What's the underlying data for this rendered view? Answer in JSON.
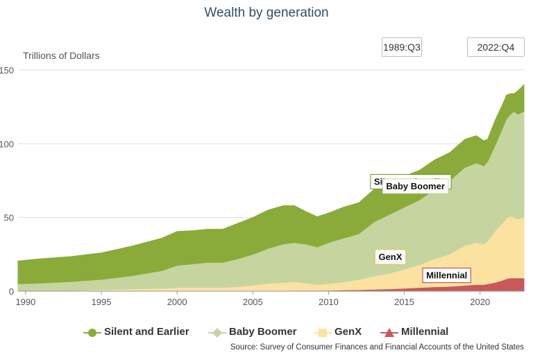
{
  "title": "Wealth by generation",
  "range": {
    "start": "1989:Q3",
    "end": "2022:Q4"
  },
  "source": "Source: Survey of Consumer Finances and Financial Accounts of the United States",
  "colors": {
    "silent": "#8aab3a",
    "boomer": "#c6d4a0",
    "genx": "#fbe2a0",
    "millennial": "#c9585a"
  },
  "legend": [
    {
      "key": "silent",
      "label": "Silent and Earlier",
      "marker": "circle"
    },
    {
      "key": "boomer",
      "label": "Baby Boomer",
      "marker": "diamond"
    },
    {
      "key": "genx",
      "label": "GenX",
      "marker": "square"
    },
    {
      "key": "millennial",
      "label": "Millennial",
      "marker": "triangle"
    }
  ],
  "chart_data": {
    "type": "area",
    "stacked": true,
    "ylabel": "Trillions of Dollars",
    "ylim": [
      0,
      150
    ],
    "yticks": [
      0,
      50,
      100,
      150
    ],
    "xlim": [
      1989.5,
      2022.9
    ],
    "xticks": [
      1990,
      1995,
      2000,
      2005,
      2010,
      2015,
      2020
    ],
    "grid": true,
    "x": [
      1989.5,
      1991,
      1993,
      1995,
      1997,
      1999,
      2000,
      2001,
      2002,
      2003,
      2004,
      2005,
      2006,
      2007,
      2007.75,
      2008.5,
      2009.25,
      2010,
      2011,
      2012,
      2013,
      2014,
      2015,
      2016,
      2017,
      2018,
      2019,
      2019.75,
      2020.25,
      2020.5,
      2021,
      2021.5,
      2021.75,
      2022,
      2022.25,
      2022.5,
      2022.9
    ],
    "series": [
      {
        "name": "Millennial",
        "key": "millennial",
        "values": [
          0,
          0,
          0,
          0,
          0,
          0,
          0,
          0,
          0,
          0,
          0.1,
          0.2,
          0.3,
          0.4,
          0.5,
          0.5,
          0.5,
          0.6,
          0.8,
          1.0,
          1.3,
          1.6,
          2.0,
          2.5,
          3.0,
          3.3,
          4.0,
          4.5,
          4.5,
          5.0,
          6.0,
          7.5,
          8.5,
          9.0,
          9.0,
          9.0,
          9.0
        ]
      },
      {
        "name": "GenX",
        "key": "genx",
        "values": [
          0,
          0,
          0.5,
          1,
          1.5,
          2,
          2.5,
          2.5,
          2.5,
          2.5,
          3.0,
          4.0,
          5.0,
          5.5,
          6.0,
          5.0,
          4.0,
          4.5,
          5.5,
          7.0,
          9.0,
          10.5,
          13.0,
          15.5,
          19.0,
          22.0,
          27.0,
          28.5,
          27.5,
          29.0,
          35.0,
          39.0,
          41.0,
          42.0,
          41.0,
          40.0,
          41.0
        ]
      },
      {
        "name": "Baby Boomer",
        "key": "boomer",
        "values": [
          5,
          5.5,
          6,
          7,
          9,
          12,
          15,
          16,
          17,
          17,
          18.9,
          20.8,
          23.7,
          26.1,
          26.5,
          26.5,
          25.5,
          27.9,
          29.7,
          31.0,
          36.7,
          39.9,
          42.0,
          44.0,
          47.0,
          49.7,
          53.0,
          54.0,
          53.0,
          54.0,
          58.0,
          64.5,
          67.5,
          69.0,
          72.0,
          71.0,
          72.0
        ]
      },
      {
        "name": "Silent and Earlier",
        "key": "silent",
        "values": [
          15.5,
          16.5,
          17,
          18,
          20,
          22,
          23,
          22.5,
          22.5,
          22.5,
          24,
          25,
          26,
          26,
          25,
          22,
          20.5,
          20,
          21,
          21,
          22,
          22,
          21,
          20,
          20,
          19,
          19,
          18.5,
          17,
          15,
          17,
          16,
          16,
          14,
          12,
          16,
          18
        ]
      }
    ],
    "annotations": [
      {
        "series": "Silent and Earlier",
        "label": "Silent and Earlier",
        "x": 2013.0,
        "y": 74,
        "color": "#6b8f1f",
        "anchor": "start"
      },
      {
        "series": "Baby Boomer",
        "label": "Baby Boomer",
        "x": 2013.8,
        "y": 71,
        "color": "#c6d4a0",
        "anchor": "start"
      },
      {
        "series": "GenX",
        "label": "GenX",
        "x": 2013.3,
        "y": 23,
        "color": "#f0c850",
        "anchor": "start"
      },
      {
        "series": "Millennial",
        "label": "Millennial",
        "x": 2017.8,
        "y": 10.5,
        "color": "#b03a3a",
        "anchor": "middle"
      }
    ]
  }
}
